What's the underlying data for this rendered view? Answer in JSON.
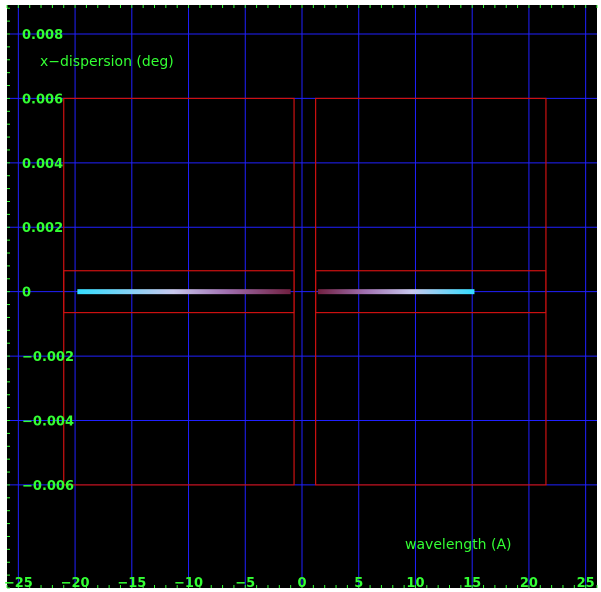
{
  "chart_data": {
    "type": "line",
    "title": "",
    "xlabel": "wavelength (A)",
    "ylabel": "x−dispersion (deg)",
    "xlim": [
      -26,
      26
    ],
    "ylim": [
      -0.0092,
      0.0089
    ],
    "x_ticks": [
      -25,
      -20,
      -15,
      -10,
      -5,
      0,
      5,
      10,
      15,
      20,
      25
    ],
    "x_tick_labels": [
      "−25",
      "−20",
      "−15",
      "−10",
      "−5",
      "0",
      "5",
      "10",
      "15",
      "20",
      "25"
    ],
    "y_ticks": [
      -0.006,
      -0.004,
      -0.002,
      0,
      0.002,
      0.004,
      0.006,
      0.008
    ],
    "y_tick_labels": [
      "−0.006",
      "−0.004",
      "−0.002",
      "0",
      "0.002",
      "0.004",
      "0.006",
      "0.008"
    ],
    "grid": true,
    "colors": {
      "background": "#000000",
      "grid": "#2020ff",
      "text": "#33ff33",
      "regions": "#cc1111",
      "frame": "#000000"
    },
    "regions": [
      {
        "x": [
          -21.0,
          -0.7
        ],
        "y": [
          -0.006,
          0.006
        ]
      },
      {
        "x": [
          -21.0,
          -0.7
        ],
        "y": [
          -0.00065,
          0.00065
        ]
      },
      {
        "x": [
          1.2,
          21.5
        ],
        "y": [
          -0.006,
          0.006
        ]
      },
      {
        "x": [
          1.2,
          21.5
        ],
        "y": [
          -0.00065,
          0.00065
        ]
      }
    ],
    "series": [
      {
        "x": [
          -19.8,
          -1.0
        ],
        "y": [
          0,
          0
        ],
        "color_start": "#33ddff",
        "color_end": "#8a2040"
      },
      {
        "x": [
          1.4,
          15.2
        ],
        "y": [
          0,
          0
        ],
        "color_start": "#8a2040",
        "color_end": "#33ddff"
      }
    ]
  }
}
